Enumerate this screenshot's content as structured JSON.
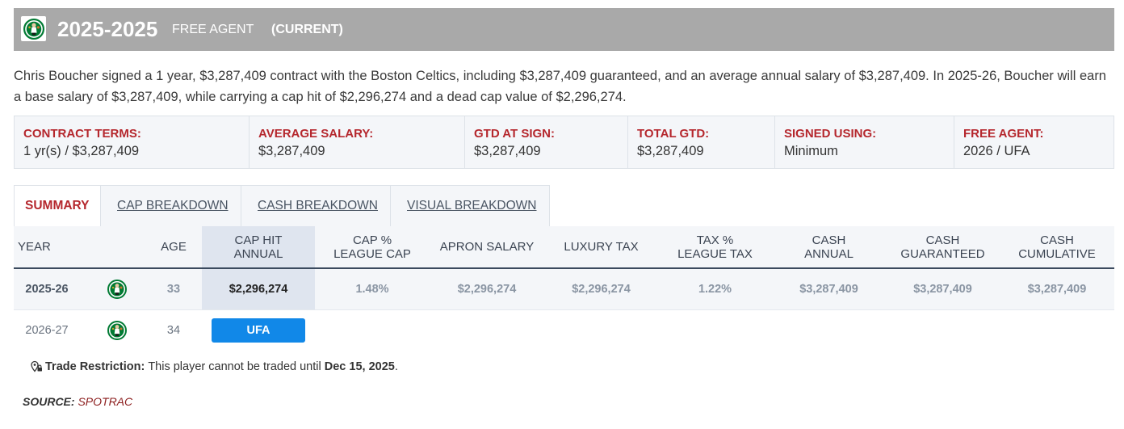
{
  "header": {
    "year": "2025-2025",
    "status": "FREE AGENT",
    "current": "(CURRENT)",
    "logo": "celtics-logo"
  },
  "summary": "Chris Boucher signed a 1 year, $3,287,409 contract with the Boston Celtics, including $3,287,409 guaranteed, and an average annual salary of $3,287,409. In 2025-26, Boucher will earn a base salary of $3,287,409, while carrying a cap hit of $2,296,274 and a dead cap value of $2,296,274.",
  "terms": [
    {
      "label": "CONTRACT TERMS:",
      "value": "1 yr(s) / $3,287,409"
    },
    {
      "label": "AVERAGE SALARY:",
      "value": "$3,287,409"
    },
    {
      "label": "GTD AT SIGN:",
      "value": "$3,287,409"
    },
    {
      "label": "TOTAL GTD:",
      "value": "$3,287,409"
    },
    {
      "label": "SIGNED USING:",
      "value": "Minimum"
    },
    {
      "label": "FREE AGENT:",
      "value": "2026 / UFA"
    }
  ],
  "tabs": [
    "SUMMARY",
    "CAP BREAKDOWN",
    "CASH BREAKDOWN",
    "VISUAL BREAKDOWN"
  ],
  "table": {
    "headers": {
      "year": "YEAR",
      "age": "AGE",
      "cap_hit_1": "CAP HIT",
      "cap_hit_2": "ANNUAL",
      "cap_pct_1": "CAP %",
      "cap_pct_2": "LEAGUE CAP",
      "apron": "APRON SALARY",
      "luxury": "LUXURY TAX",
      "tax_pct_1": "TAX %",
      "tax_pct_2": "LEAGUE TAX",
      "cash_annual_1": "CASH",
      "cash_annual_2": "ANNUAL",
      "cash_gtd_1": "CASH",
      "cash_gtd_2": "GUARANTEED",
      "cash_cum_1": "CASH",
      "cash_cum_2": "CUMULATIVE"
    },
    "rows": [
      {
        "year": "2025-26",
        "age": "33",
        "cap_hit": "$2,296,274",
        "cap_pct": "1.48%",
        "apron": "$2,296,274",
        "luxury": "$2,296,274",
        "tax_pct": "1.22%",
        "cash_annual": "$3,287,409",
        "cash_gtd": "$3,287,409",
        "cash_cum": "$3,287,409"
      },
      {
        "year": "2026-27",
        "age": "34",
        "status": "UFA"
      }
    ]
  },
  "trade": {
    "label": "Trade Restriction:",
    "text": "This player cannot be traded until",
    "date": "Dec 15, 2025",
    "end": "."
  },
  "source": {
    "label": "SOURCE:",
    "value": "SPOTRAC"
  },
  "colors": {
    "header_bg": "#a9a9a9",
    "accent_red": "#b5272d",
    "ufa_blue": "#1188e8",
    "celtics_green": "#007a33"
  }
}
